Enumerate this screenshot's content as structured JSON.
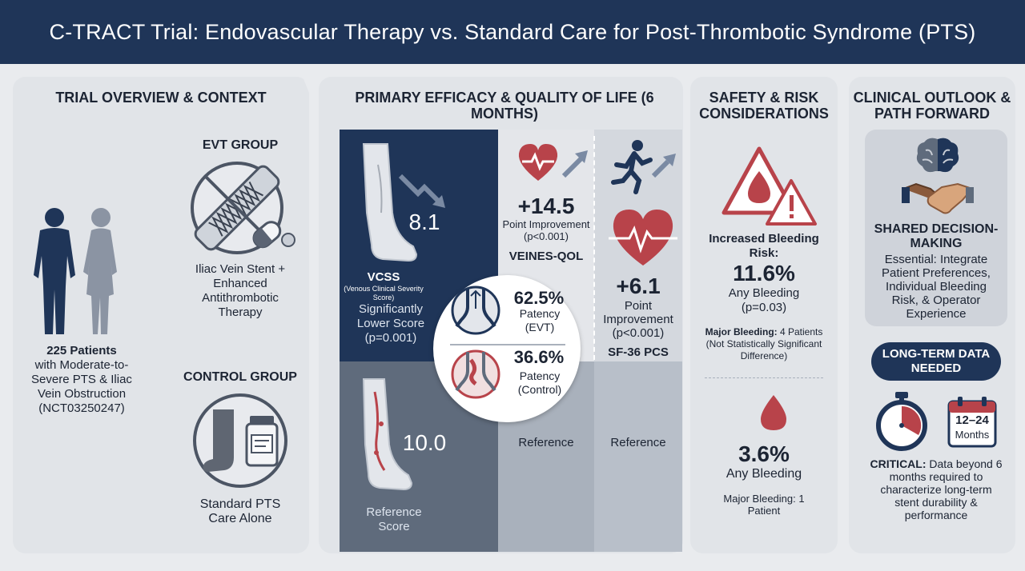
{
  "title": "C-TRACT Trial: Endovascular Therapy vs. Standard Care for Post-Thrombotic Syndrome (PTS)",
  "overview": {
    "heading": "TRIAL OVERVIEW & CONTEXT",
    "patients_bold": "225 Patients",
    "patients_desc": "with Moderate-to-Severe PTS & Iliac Vein Obstruction (NCT03250247)",
    "evt_label": "EVT GROUP",
    "evt_desc": "Iliac Vein Stent + Enhanced Antithrombotic Therapy",
    "control_label": "CONTROL GROUP",
    "control_desc": "Standard PTS Care Alone",
    "icons": [
      "patients-icon",
      "stent-icon",
      "pill-icon",
      "compression-stocking-icon",
      "medication-bottle-icon"
    ]
  },
  "efficacy": {
    "heading": "PRIMARY EFFICACY & QUALITY OF LIFE (6 MONTHS)",
    "vcss": {
      "evt_value": "8.1",
      "label": "VCSS",
      "sublabel": "(Venous Clinical Severity Score)",
      "desc": "Significantly Lower Score (p=0.001)",
      "control_value": "10.0",
      "control_desc": "Reference Score"
    },
    "veines": {
      "value": "+14.5",
      "desc": "Point Improvement (p<0.001)",
      "label": "VEINES-QOL",
      "control": "Reference"
    },
    "sf36": {
      "value": "+6.1",
      "desc": "Point Improvement (p<0.001)",
      "label": "SF-36 PCS",
      "control": "Reference"
    },
    "patency": {
      "evt_value": "62.5%",
      "evt_label": "Patency (EVT)",
      "control_value": "36.6%",
      "control_label": "Patency (Control)"
    },
    "colors": {
      "evt_dark": "#1f3558",
      "control_gray": "#5f6b7c",
      "accent_red": "#b8434a"
    }
  },
  "safety": {
    "heading": "SAFETY & RISK CONSIDERATIONS",
    "risk_label": "Increased Bleeding Risk:",
    "evt_value": "11.6%",
    "evt_desc": "Any Bleeding (p=0.03)",
    "evt_major_bold": "Major Bleeding:",
    "evt_major_rest": " 4 Patients",
    "evt_note": "(Not Statistically Significant Difference)",
    "control_value": "3.6%",
    "control_desc": "Any Bleeding",
    "control_major": "Major Bleeding: 1 Patient",
    "icons": [
      "warning-triangle-icon",
      "blood-drop-icon"
    ]
  },
  "outlook": {
    "heading": "CLINICAL OUTLOOK & PATH FORWARD",
    "sdm_label": "SHARED DECISION-MAKING",
    "sdm_desc": "Essential: Integrate Patient Preferences, Individual Bleeding Risk, & Operator Experience",
    "pill": "LONG-TERM DATA NEEDED",
    "calendar_range": "12–24",
    "calendar_unit": "Months",
    "critical_bold": "CRITICAL:",
    "critical_rest": " Data beyond 6 months required to characterize long-term stent durability & performance",
    "icons": [
      "brain-icon",
      "handshake-icon",
      "stopwatch-icon",
      "calendar-icon"
    ]
  }
}
